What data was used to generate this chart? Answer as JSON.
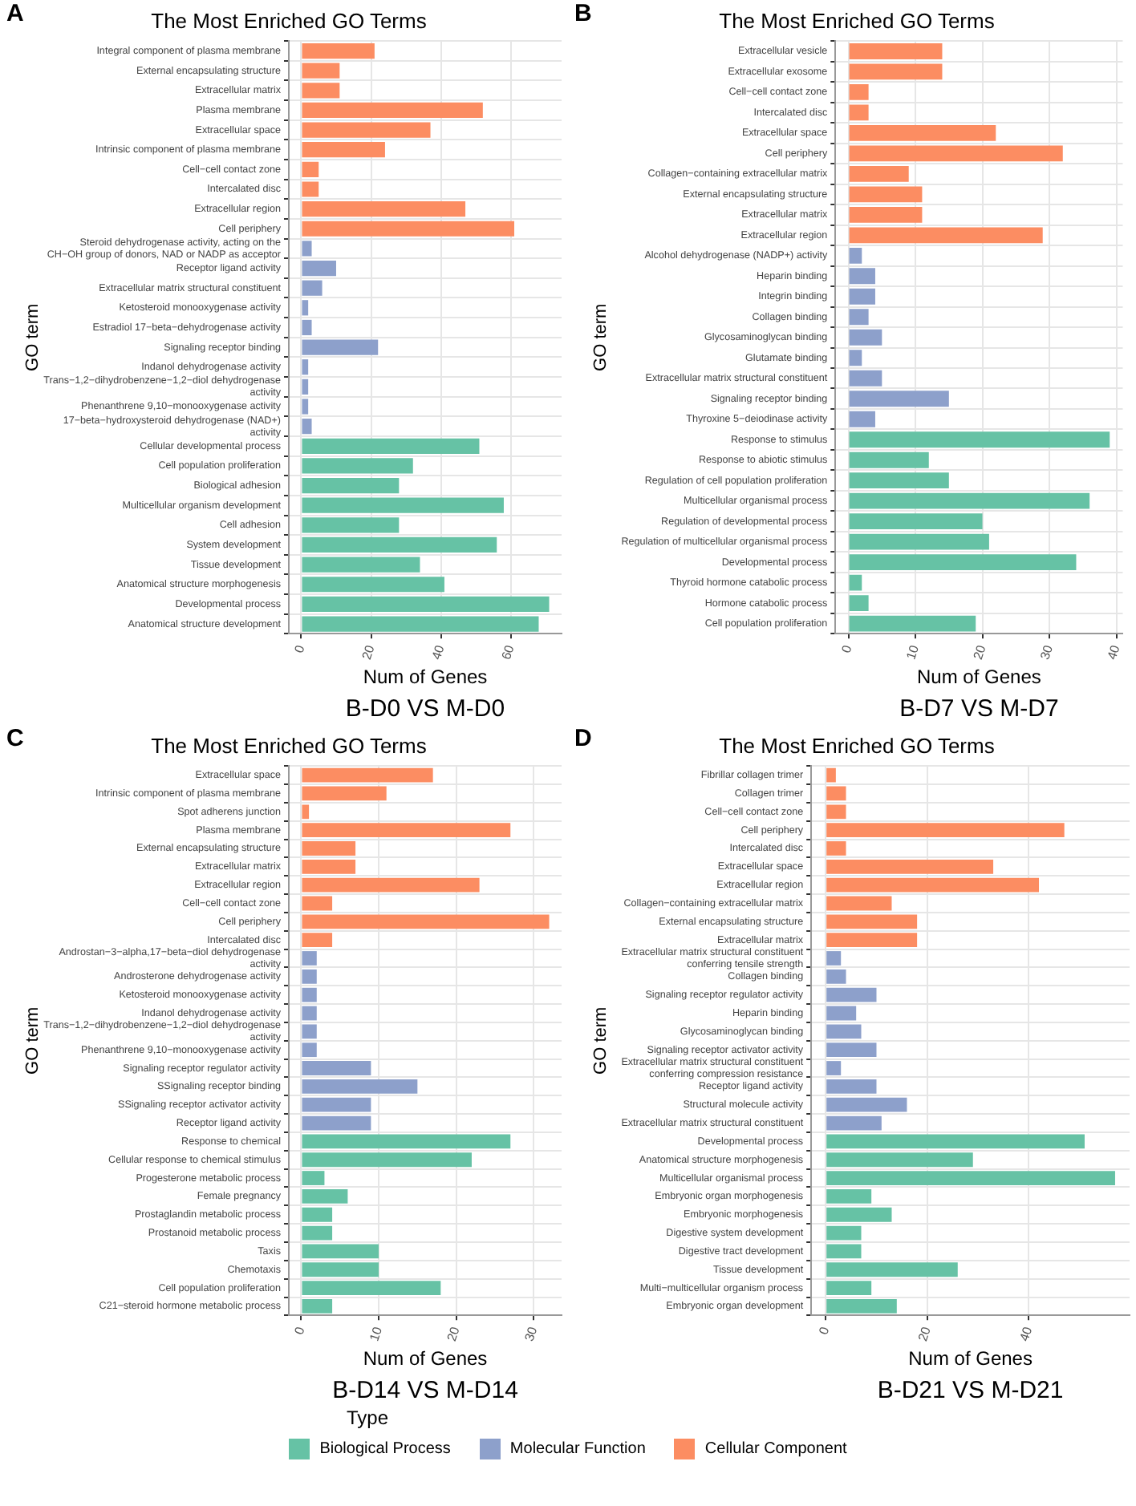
{
  "chart_data": [
    {
      "type": "bar",
      "orientation": "horizontal",
      "title": "The Most Enriched GO Terms",
      "subtitle": "B-D0 VS M-D0",
      "xlabel": "Num of Genes",
      "ylabel": "GO term",
      "annotations": [
        "A"
      ],
      "legend": "bottom",
      "legend_title": "Type",
      "categories": [
        "Integral component of plasma membrane",
        "External encapsulating structure",
        "Extracellular matrix",
        "Plasma membrane",
        "Extracellular space",
        "Intrinsic component of plasma membrane",
        "Cell−cell contact zone",
        "Intercalated disc",
        "Extracellular region",
        "Cell periphery",
        "Steroid dehydrogenase activity, acting on the\nCH−OH group of donors, NAD or NADP as acceptor",
        "Receptor ligand activity",
        "Extracellular matrix structural constituent",
        "Ketosteroid monooxygenase activity",
        "Estradiol 17−beta−dehydrogenase activity",
        "Signaling receptor binding",
        "Indanol dehydrogenase activity",
        "Trans−1,2−dihydrobenzene−1,2−diol dehydrogenase\nactivity",
        "Phenanthrene 9,10−monooxygenase activity",
        "17−beta−hydroxysteroid dehydrogenase (NAD+)\nactivity",
        "Cellular developmental process",
        "Cell population proliferation",
        "Biological adhesion",
        "Multicellular organism development",
        "Cell adhesion",
        "System development",
        "Tissue development",
        "Anatomical structure morphogenesis",
        "Developmental process",
        "Anatomical structure development"
      ],
      "series": [
        {
          "name": "Biological Process",
          "color": "#66c2a5",
          "values": [
            null,
            null,
            null,
            null,
            null,
            null,
            null,
            null,
            null,
            null,
            null,
            null,
            null,
            null,
            null,
            null,
            null,
            null,
            null,
            null,
            51,
            32,
            28,
            58,
            28,
            56,
            34,
            41,
            71,
            68
          ]
        },
        {
          "name": "Molecular Function",
          "color": "#8da0cb",
          "values": [
            null,
            null,
            null,
            null,
            null,
            null,
            null,
            null,
            null,
            null,
            3,
            10,
            6,
            2,
            3,
            22,
            2,
            2,
            2,
            3,
            null,
            null,
            null,
            null,
            null,
            null,
            null,
            null,
            null,
            null
          ]
        },
        {
          "name": "Cellular Component",
          "color": "#fc8d62",
          "values": [
            21,
            11,
            11,
            52,
            37,
            24,
            5,
            5,
            47,
            61,
            null,
            null,
            null,
            null,
            null,
            null,
            null,
            null,
            null,
            null,
            null,
            null,
            null,
            null,
            null,
            null,
            null,
            null,
            null,
            null
          ]
        }
      ],
      "xlim": [
        -3.55,
        74.55
      ],
      "xticks": [
        0,
        20,
        40,
        60
      ],
      "grid": true
    },
    {
      "type": "bar",
      "orientation": "horizontal",
      "title": "The Most Enriched GO Terms",
      "subtitle": "B-D7 VS M-D7",
      "xlabel": "Num of Genes",
      "ylabel": "GO term",
      "annotations": [
        "B"
      ],
      "categories": [
        "Extracellular vesicle",
        "Extracellular exosome",
        "Cell−cell contact zone",
        "Intercalated disc",
        "Extracellular space",
        "Cell periphery",
        "Collagen−containing extracellular matrix",
        "External encapsulating structure",
        "Extracellular matrix",
        "Extracellular region",
        "Alcohol dehydrogenase (NADP+) activity",
        "Heparin binding",
        "Integrin binding",
        "Collagen binding",
        "Glycosaminoglycan binding",
        "Glutamate binding",
        "Extracellular matrix structural constituent",
        "Signaling receptor binding",
        "Thyroxine 5−deiodinase activity",
        "Response to stimulus",
        "Response to abiotic stimulus",
        "Regulation of cell population proliferation",
        "Multicellular organismal process",
        "Regulation of developmental process",
        "Regulation of multicellular organismal process",
        "Developmental process",
        "Thyroid hormone catabolic process",
        "Hormone catabolic process",
        "Cell population proliferation"
      ],
      "series": [
        {
          "color": "#66c2a5",
          "values": [
            null,
            null,
            null,
            null,
            null,
            null,
            null,
            null,
            null,
            null,
            null,
            null,
            null,
            null,
            null,
            null,
            null,
            null,
            null,
            39,
            12,
            15,
            36,
            20,
            21,
            34,
            2,
            3,
            19
          ]
        },
        {
          "color": "#8da0cb",
          "values": [
            null,
            null,
            null,
            null,
            null,
            null,
            null,
            null,
            null,
            null,
            2,
            4,
            4,
            3,
            5,
            2,
            5,
            15,
            4,
            null,
            null,
            null,
            null,
            null,
            null,
            null,
            null,
            null,
            null
          ]
        },
        {
          "color": "#fc8d62",
          "values": [
            14,
            14,
            3,
            3,
            22,
            32,
            9,
            11,
            11,
            29,
            null,
            null,
            null,
            null,
            null,
            null,
            null,
            null,
            null,
            null,
            null,
            null,
            null,
            null,
            null,
            null,
            null,
            null,
            null
          ]
        }
      ],
      "xlim": [
        -1.95,
        40.95
      ],
      "xticks": [
        0,
        10,
        20,
        30,
        40
      ],
      "grid": true
    },
    {
      "type": "bar",
      "orientation": "horizontal",
      "title": "The Most Enriched GO Terms",
      "subtitle": "B-D14 VS M-D14",
      "xlabel": "Num of Genes",
      "ylabel": "GO term",
      "annotations": [
        "C"
      ],
      "categories": [
        "Extracellular space",
        "Intrinsic component of plasma membrane",
        "Spot adherens junction",
        "Plasma membrane",
        "External encapsulating structure",
        "Extracellular matrix",
        "Extracellular region",
        "Cell−cell contact zone",
        "Cell periphery",
        "Intercalated disc",
        "Androstan−3−alpha,17−beta−diol dehydrogenase\nactivity",
        "Androsterone dehydrogenase activity",
        "Ketosteroid monooxygenase activity",
        "Indanol dehydrogenase activity",
        "Trans−1,2−dihydrobenzene−1,2−diol dehydrogenase\nactivity",
        "Phenanthrene 9,10−monooxygenase activity",
        "Signaling receptor regulator activity",
        "SSignaling receptor binding",
        "SSignaling receptor activator activity",
        "Receptor ligand activity",
        "Response to chemical",
        "Cellular response to chemical stimulus",
        "Progesterone metabolic process",
        "Female pregnancy",
        "Prostaglandin metabolic process",
        "Prostanoid metabolic process",
        "Taxis",
        "Chemotaxis",
        "Cell population proliferation",
        "C21−steroid hormone metabolic process"
      ],
      "series": [
        {
          "color": "#66c2a5",
          "values": [
            null,
            null,
            null,
            null,
            null,
            null,
            null,
            null,
            null,
            null,
            null,
            null,
            null,
            null,
            null,
            null,
            null,
            null,
            null,
            null,
            27,
            22,
            3,
            6,
            4,
            4,
            10,
            10,
            18,
            4
          ]
        },
        {
          "color": "#8da0cb",
          "values": [
            null,
            null,
            null,
            null,
            null,
            null,
            null,
            null,
            null,
            null,
            2,
            2,
            2,
            2,
            2,
            2,
            9,
            15,
            9,
            9,
            null,
            null,
            null,
            null,
            null,
            null,
            null,
            null,
            null,
            null
          ]
        },
        {
          "color": "#fc8d62",
          "values": [
            17,
            11,
            1,
            27,
            7,
            7,
            23,
            4,
            32,
            4,
            null,
            null,
            null,
            null,
            null,
            null,
            null,
            null,
            null,
            null,
            null,
            null,
            null,
            null,
            null,
            null,
            null,
            null,
            null,
            null
          ]
        }
      ],
      "xlim": [
        -1.6,
        33.6
      ],
      "xticks": [
        0,
        10,
        20,
        30
      ],
      "grid": true
    },
    {
      "type": "bar",
      "orientation": "horizontal",
      "title": "The Most Enriched GO Terms",
      "subtitle": "B-D21 VS M-D21",
      "xlabel": "Num of Genes",
      "ylabel": "GO term",
      "annotations": [
        "D"
      ],
      "categories": [
        "Fibrillar collagen trimer",
        "Collagen trimer",
        "Cell−cell contact zone",
        "Cell periphery",
        "Intercalated disc",
        "Extracellular space",
        "Extracellular region",
        "Collagen−containing extracellular matrix",
        "External encapsulating structure",
        "Extracellular matrix",
        "Extracellular matrix structural constituent\nconferring tensile strength",
        "Collagen binding",
        "Signaling receptor regulator activity",
        "Heparin binding",
        "Glycosaminoglycan binding",
        "Signaling receptor activator activity",
        "Extracellular matrix structural constituent\nconferring compression resistance",
        "Receptor ligand activity",
        "Structural molecule activity",
        "Extracellular matrix structural constituent",
        "Developmental process",
        "Anatomical structure morphogenesis",
        "Multicellular organismal process",
        "Embryonic organ morphogenesis",
        "Embryonic morphogenesis",
        "Digestive system development",
        "Digestive tract development",
        "Tissue development",
        "Multi−multicellular organism process",
        "Embryonic organ development"
      ],
      "series": [
        {
          "color": "#66c2a5",
          "values": [
            null,
            null,
            null,
            null,
            null,
            null,
            null,
            null,
            null,
            null,
            null,
            null,
            null,
            null,
            null,
            null,
            null,
            null,
            null,
            null,
            51,
            29,
            57,
            9,
            13,
            7,
            7,
            26,
            9,
            14
          ]
        },
        {
          "color": "#8da0cb",
          "values": [
            null,
            null,
            null,
            null,
            null,
            null,
            null,
            null,
            null,
            null,
            3,
            4,
            10,
            6,
            7,
            10,
            3,
            10,
            16,
            11,
            null,
            null,
            null,
            null,
            null,
            null,
            null,
            null,
            null,
            null
          ]
        },
        {
          "color": "#fc8d62",
          "values": [
            2,
            4,
            4,
            47,
            4,
            33,
            42,
            13,
            18,
            18,
            null,
            null,
            null,
            null,
            null,
            null,
            null,
            null,
            null,
            null,
            null,
            null,
            null,
            null,
            null,
            null,
            null,
            null,
            null,
            null
          ]
        }
      ],
      "xlim": [
        -2.85,
        59.85
      ],
      "xticks": [
        0,
        20,
        40
      ],
      "grid": true
    }
  ]
}
